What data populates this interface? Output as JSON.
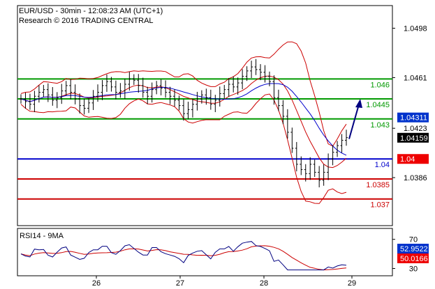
{
  "header": {
    "title": "EUR/USD - 30min - 12:08:23 AM (UTC+1)",
    "subtitle": "Research © 2016 TRADING CENTRAL"
  },
  "chart_data": [
    {
      "type": "candlestick",
      "ylim": [
        1.035,
        1.0515
      ],
      "y_ticks": [
        "1.0498",
        "1.0461",
        "1.0423",
        "1.0386"
      ],
      "x_ticks": [
        "26",
        "27",
        "28",
        "29"
      ],
      "x_tick_days": [
        26,
        27,
        28,
        29
      ],
      "levels": [
        {
          "label": "1.046",
          "value": 1.046,
          "color": "#009900"
        },
        {
          "label": "1.0445",
          "value": 1.0445,
          "color": "#009900"
        },
        {
          "label": "1.043",
          "value": 1.043,
          "color": "#009900"
        },
        {
          "label": "1.04",
          "value": 1.04,
          "color": "#0000cc"
        },
        {
          "label": "1.0385",
          "value": 1.0385,
          "color": "#cc0000"
        },
        {
          "label": "1.037",
          "value": 1.037,
          "color": "#cc0000"
        }
      ],
      "badges": [
        {
          "label": "1.04311",
          "value": 1.04311,
          "color": "#0033cc"
        },
        {
          "label": "1.04159",
          "value": 1.04159,
          "color": "#000000"
        },
        {
          "label": "1.04",
          "value": 1.04,
          "color": "#ee0000"
        }
      ],
      "projection": {
        "from": 1.0415,
        "to": 1.0445,
        "color": "#000080"
      },
      "price": [
        1.0445,
        1.0443,
        1.0441,
        1.0447,
        1.045,
        1.0452,
        1.0448,
        1.0444,
        1.0446,
        1.0451,
        1.0455,
        1.045,
        1.0445,
        1.044,
        1.0438,
        1.0442,
        1.0447,
        1.045,
        1.0455,
        1.0458,
        1.0454,
        1.045,
        1.0451,
        1.0456,
        1.046,
        1.0459,
        1.0455,
        1.045,
        1.0447,
        1.0452,
        1.0455,
        1.0453,
        1.045,
        1.0447,
        1.0444,
        1.044,
        1.0434,
        1.0437,
        1.0441,
        1.0445,
        1.0448,
        1.0446,
        1.0441,
        1.0444,
        1.0449,
        1.0452,
        1.0456,
        1.0454,
        1.0457,
        1.0462,
        1.0466,
        1.0469,
        1.0467,
        1.0465,
        1.0462,
        1.0458,
        1.0446,
        1.044,
        1.0432,
        1.042,
        1.0408,
        1.0396,
        1.0392,
        1.0389,
        1.0396,
        1.039,
        1.0384,
        1.039,
        1.04,
        1.0405,
        1.041,
        1.0414,
        1.0416
      ],
      "rsi": {
        "label": "RSI14 - 9MA",
        "ticks": [
          "70",
          "30"
        ],
        "ylim": [
          20,
          85
        ],
        "value_badge": {
          "label": "52.9522",
          "color": "#0033cc"
        },
        "ma_badge": {
          "label": "50.0166",
          "color": "#ee0000"
        }
      }
    }
  ]
}
